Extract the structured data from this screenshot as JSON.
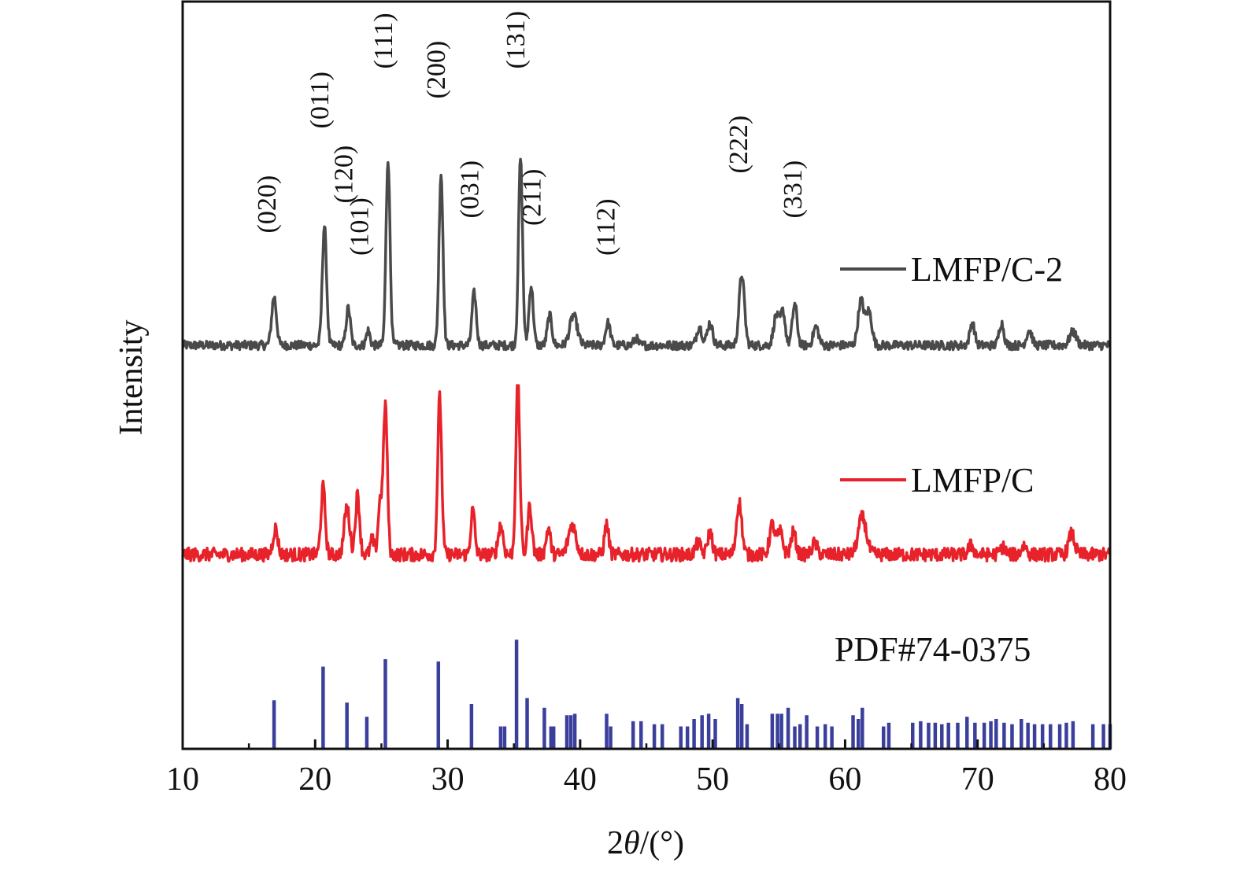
{
  "chart_data": {
    "type": "line",
    "xlabel_prefix": "2",
    "xlabel_symbol": "θ",
    "xlabel_suffix": "/(°)",
    "ylabel": "Intensity",
    "xlim": [
      10,
      80
    ],
    "xticks": [
      10,
      20,
      30,
      40,
      50,
      60,
      70,
      80
    ],
    "colors": {
      "lmfp_c2": "#4a4a4a",
      "lmfp_c": "#e8222a",
      "pdf": "#3b3f9c"
    },
    "series": [
      {
        "name": "LMFP/C-2",
        "key": "lmfp_c2",
        "baseline": 0.54,
        "noise": 0.006,
        "peaks": [
          {
            "x": 16.9,
            "h": 0.065,
            "w": 0.18
          },
          {
            "x": 20.7,
            "h": 0.16,
            "w": 0.16
          },
          {
            "x": 22.5,
            "h": 0.05,
            "w": 0.16
          },
          {
            "x": 24.0,
            "h": 0.02,
            "w": 0.14
          },
          {
            "x": 25.5,
            "h": 0.25,
            "w": 0.15
          },
          {
            "x": 29.5,
            "h": 0.23,
            "w": 0.15
          },
          {
            "x": 32.0,
            "h": 0.07,
            "w": 0.16
          },
          {
            "x": 35.5,
            "h": 0.25,
            "w": 0.15
          },
          {
            "x": 36.3,
            "h": 0.08,
            "w": 0.16
          },
          {
            "x": 37.7,
            "h": 0.04,
            "w": 0.17
          },
          {
            "x": 39.5,
            "h": 0.04,
            "w": 0.28
          },
          {
            "x": 42.1,
            "h": 0.03,
            "w": 0.18
          },
          {
            "x": 44.2,
            "h": 0.01,
            "w": 0.15
          },
          {
            "x": 49.0,
            "h": 0.025,
            "w": 0.2
          },
          {
            "x": 49.8,
            "h": 0.03,
            "w": 0.2
          },
          {
            "x": 52.2,
            "h": 0.095,
            "w": 0.2
          },
          {
            "x": 54.8,
            "h": 0.04,
            "w": 0.2
          },
          {
            "x": 55.3,
            "h": 0.045,
            "w": 0.18
          },
          {
            "x": 56.2,
            "h": 0.055,
            "w": 0.18
          },
          {
            "x": 57.8,
            "h": 0.025,
            "w": 0.2
          },
          {
            "x": 61.2,
            "h": 0.06,
            "w": 0.22
          },
          {
            "x": 61.8,
            "h": 0.045,
            "w": 0.22
          },
          {
            "x": 69.6,
            "h": 0.03,
            "w": 0.18
          },
          {
            "x": 71.8,
            "h": 0.03,
            "w": 0.18
          },
          {
            "x": 73.9,
            "h": 0.02,
            "w": 0.2
          },
          {
            "x": 77.2,
            "h": 0.018,
            "w": 0.25
          }
        ]
      },
      {
        "name": "LMFP/C",
        "key": "lmfp_c",
        "baseline": 0.26,
        "noise": 0.009,
        "peaks": [
          {
            "x": 17.0,
            "h": 0.035,
            "w": 0.18
          },
          {
            "x": 20.6,
            "h": 0.09,
            "w": 0.16
          },
          {
            "x": 22.4,
            "h": 0.065,
            "w": 0.2
          },
          {
            "x": 23.2,
            "h": 0.08,
            "w": 0.16
          },
          {
            "x": 24.3,
            "h": 0.02,
            "w": 0.14
          },
          {
            "x": 24.9,
            "h": 0.07,
            "w": 0.15
          },
          {
            "x": 25.3,
            "h": 0.2,
            "w": 0.15
          },
          {
            "x": 29.4,
            "h": 0.21,
            "w": 0.15
          },
          {
            "x": 31.9,
            "h": 0.06,
            "w": 0.15
          },
          {
            "x": 34.0,
            "h": 0.04,
            "w": 0.18
          },
          {
            "x": 35.3,
            "h": 0.23,
            "w": 0.15
          },
          {
            "x": 36.2,
            "h": 0.065,
            "w": 0.16
          },
          {
            "x": 37.6,
            "h": 0.035,
            "w": 0.16
          },
          {
            "x": 39.4,
            "h": 0.04,
            "w": 0.28
          },
          {
            "x": 42.0,
            "h": 0.04,
            "w": 0.16
          },
          {
            "x": 48.9,
            "h": 0.015,
            "w": 0.2
          },
          {
            "x": 49.8,
            "h": 0.03,
            "w": 0.18
          },
          {
            "x": 52.0,
            "h": 0.07,
            "w": 0.2
          },
          {
            "x": 54.5,
            "h": 0.04,
            "w": 0.2
          },
          {
            "x": 55.1,
            "h": 0.03,
            "w": 0.2
          },
          {
            "x": 56.1,
            "h": 0.03,
            "w": 0.18
          },
          {
            "x": 57.7,
            "h": 0.015,
            "w": 0.2
          },
          {
            "x": 61.3,
            "h": 0.05,
            "w": 0.3
          },
          {
            "x": 69.5,
            "h": 0.012,
            "w": 0.2
          },
          {
            "x": 71.9,
            "h": 0.01,
            "w": 0.2
          },
          {
            "x": 73.5,
            "h": 0.012,
            "w": 0.2
          },
          {
            "x": 77.1,
            "h": 0.028,
            "w": 0.22
          }
        ]
      },
      {
        "name": "PDF#74-0375",
        "key": "pdf",
        "type": "stick",
        "sticks": [
          [
            16.9,
            0.065
          ],
          [
            20.6,
            0.11
          ],
          [
            22.4,
            0.062
          ],
          [
            23.9,
            0.043
          ],
          [
            25.3,
            0.12
          ],
          [
            29.3,
            0.117
          ],
          [
            31.8,
            0.06
          ],
          [
            34.0,
            0.03
          ],
          [
            34.3,
            0.03
          ],
          [
            35.2,
            0.146
          ],
          [
            36.0,
            0.068
          ],
          [
            37.3,
            0.055
          ],
          [
            37.8,
            0.03
          ],
          [
            38.0,
            0.03
          ],
          [
            39.0,
            0.045
          ],
          [
            39.3,
            0.045
          ],
          [
            39.6,
            0.047
          ],
          [
            42.0,
            0.047
          ],
          [
            42.3,
            0.03
          ],
          [
            44.0,
            0.037
          ],
          [
            44.6,
            0.037
          ],
          [
            45.6,
            0.033
          ],
          [
            46.2,
            0.033
          ],
          [
            47.6,
            0.03
          ],
          [
            48.1,
            0.03
          ],
          [
            48.6,
            0.04
          ],
          [
            49.2,
            0.045
          ],
          [
            49.7,
            0.047
          ],
          [
            50.2,
            0.04
          ],
          [
            51.9,
            0.068
          ],
          [
            52.2,
            0.06
          ],
          [
            52.6,
            0.033
          ],
          [
            54.5,
            0.047
          ],
          [
            54.9,
            0.047
          ],
          [
            55.2,
            0.047
          ],
          [
            55.7,
            0.055
          ],
          [
            56.2,
            0.03
          ],
          [
            56.6,
            0.033
          ],
          [
            57.1,
            0.045
          ],
          [
            57.9,
            0.03
          ],
          [
            58.5,
            0.033
          ],
          [
            59.0,
            0.03
          ],
          [
            60.6,
            0.045
          ],
          [
            61.0,
            0.04
          ],
          [
            61.3,
            0.055
          ],
          [
            62.9,
            0.03
          ],
          [
            63.3,
            0.035
          ],
          [
            65.1,
            0.035
          ],
          [
            65.7,
            0.037
          ],
          [
            66.3,
            0.035
          ],
          [
            66.8,
            0.035
          ],
          [
            67.3,
            0.033
          ],
          [
            67.8,
            0.035
          ],
          [
            68.5,
            0.035
          ],
          [
            69.2,
            0.043
          ],
          [
            69.8,
            0.035
          ],
          [
            70.5,
            0.035
          ],
          [
            71.0,
            0.037
          ],
          [
            71.4,
            0.04
          ],
          [
            72.0,
            0.035
          ],
          [
            72.6,
            0.033
          ],
          [
            73.3,
            0.04
          ],
          [
            73.8,
            0.035
          ],
          [
            74.3,
            0.033
          ],
          [
            74.9,
            0.033
          ],
          [
            75.5,
            0.033
          ],
          [
            76.2,
            0.033
          ],
          [
            76.7,
            0.035
          ],
          [
            77.2,
            0.037
          ],
          [
            78.7,
            0.033
          ],
          [
            79.5,
            0.033
          ],
          [
            80.0,
            0.033
          ]
        ]
      }
    ],
    "peak_labels": [
      {
        "text": "(020)",
        "x": 17.0,
        "y": 0.69
      },
      {
        "text": "(011)",
        "x": 21.0,
        "y": 0.83
      },
      {
        "text": "(120)",
        "x": 22.8,
        "y": 0.73
      },
      {
        "text": "(101)",
        "x": 24.0,
        "y": 0.66
      },
      {
        "text": "(111)",
        "x": 25.8,
        "y": 0.91
      },
      {
        "text": "(200)",
        "x": 29.8,
        "y": 0.87
      },
      {
        "text": "(031)",
        "x": 32.3,
        "y": 0.71
      },
      {
        "text": "(131)",
        "x": 35.8,
        "y": 0.91
      },
      {
        "text": "(211)",
        "x": 37.0,
        "y": 0.7
      },
      {
        "text": "(112)",
        "x": 42.6,
        "y": 0.66
      },
      {
        "text": "(222)",
        "x": 52.6,
        "y": 0.77
      },
      {
        "text": "(331)",
        "x": 56.7,
        "y": 0.71
      }
    ],
    "legend": [
      {
        "text": "LMFP/C-2",
        "key": "lmfp_c2"
      },
      {
        "text": "LMFP/C",
        "key": "lmfp_c"
      },
      {
        "text": "PDF#74-0375",
        "key": "pdf"
      }
    ]
  }
}
